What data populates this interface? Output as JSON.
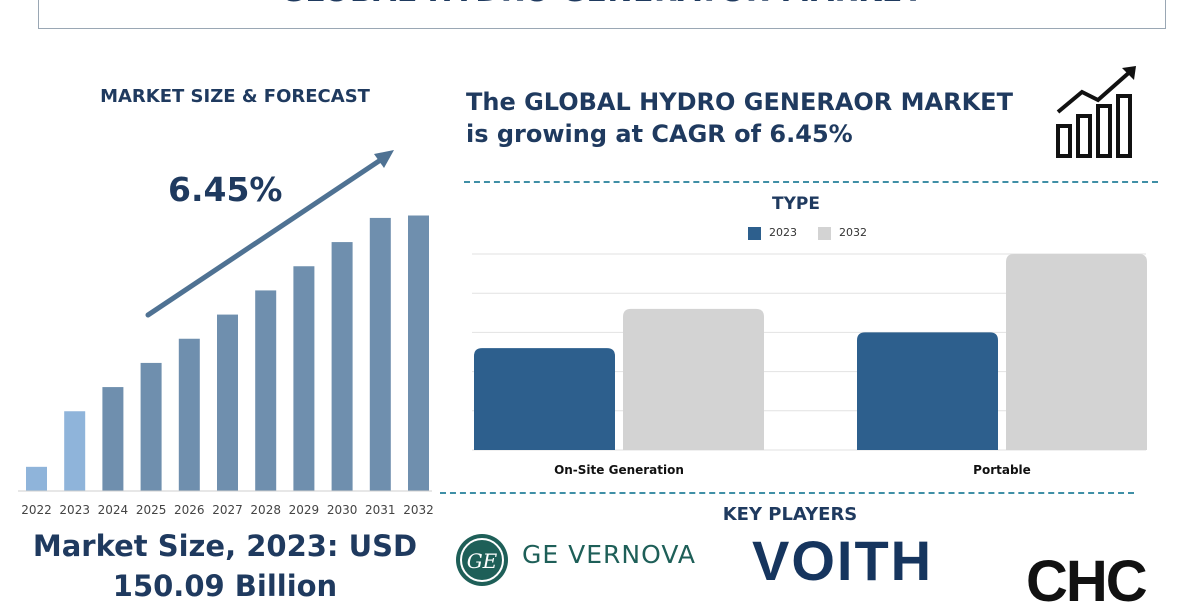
{
  "title": "GLOBAL HYDRO GENERATOR MARKET",
  "left_panel": {
    "heading": "MARKET SIZE & FORECAST",
    "cagr_label": "6.45%",
    "market_size_line1": "Market Size, 2023: USD",
    "market_size_line2": "150.09 Billion"
  },
  "right_panel": {
    "headline_line1": "The GLOBAL HYDRO GENERAOR MARKET",
    "headline_line2": "is growing at CAGR of 6.45%",
    "chart_heading": "TYPE",
    "legend": [
      "2023",
      "2032"
    ]
  },
  "key_players": {
    "heading": "KEY PLAYERS",
    "companies": [
      "GE VERNOVA",
      "VOITH",
      "CHC"
    ]
  },
  "colors": {
    "primary_navy": "#1f3a5f",
    "bar_light_blue": "#8fb4da",
    "bar_steel_blue": "#6f8fae",
    "bar_2023": "#2d5f8d",
    "bar_2032": "#d3d3d3",
    "divider_teal": "#3f8fa6"
  },
  "chart_data": [
    {
      "type": "bar",
      "categories": [
        "2022",
        "2023",
        "2024",
        "2025",
        "2026",
        "2027",
        "2028",
        "2029",
        "2030",
        "2031",
        "2032"
      ],
      "values": [
        1.0,
        3.3,
        4.3,
        5.3,
        6.3,
        7.3,
        8.3,
        9.3,
        10.3,
        11.3,
        11.4
      ],
      "highlight_years": [
        "2022",
        "2023"
      ],
      "ylim": [
        0,
        12
      ],
      "grid": false,
      "annotation": "6.45%"
    },
    {
      "type": "bar",
      "title": "TYPE",
      "categories": [
        "On-Site Generation",
        "Portable"
      ],
      "series": [
        {
          "name": "2023",
          "values": [
            2.6,
            3.0
          ]
        },
        {
          "name": "2032",
          "values": [
            3.6,
            5.0
          ]
        }
      ],
      "ylim": [
        0,
        5
      ],
      "grid": true,
      "legend": "top-center"
    }
  ]
}
